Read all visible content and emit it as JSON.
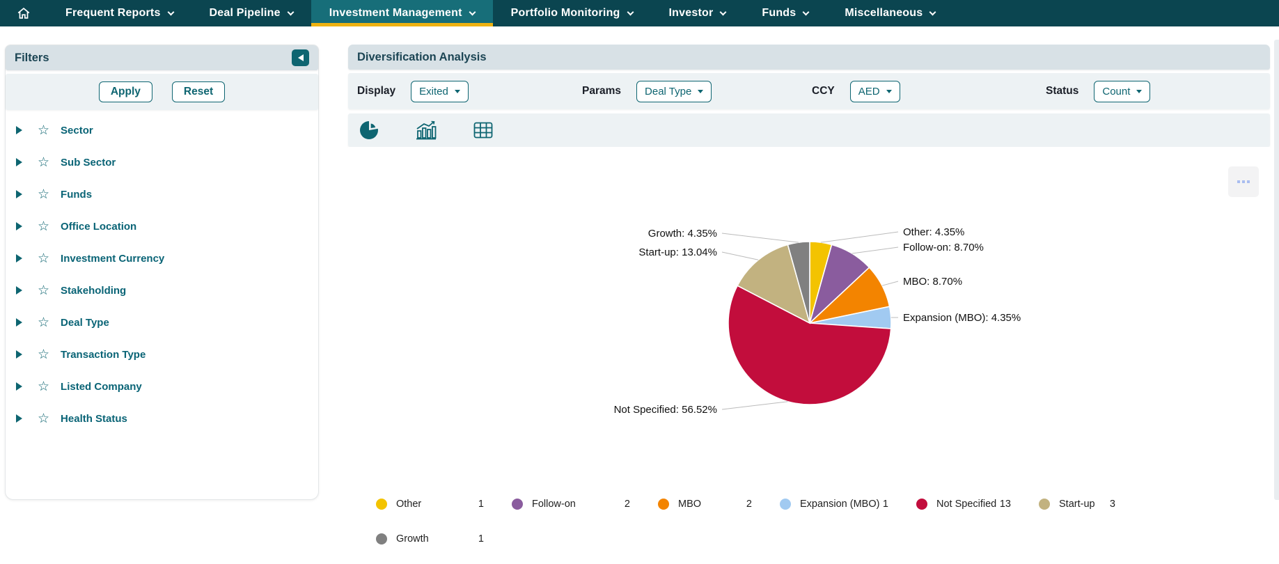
{
  "nav": {
    "items": [
      {
        "label": "Frequent Reports"
      },
      {
        "label": "Deal Pipeline"
      },
      {
        "label": "Investment Management"
      },
      {
        "label": "Portfolio Monitoring"
      },
      {
        "label": "Investor"
      },
      {
        "label": "Funds"
      },
      {
        "label": "Miscellaneous"
      }
    ],
    "active_item": "Investment Management",
    "colors": {
      "bar": "#0b4550",
      "active_bg": "#176e79",
      "active_underline": "#eeb211"
    }
  },
  "filters": {
    "title": "Filters",
    "apply_label": "Apply",
    "reset_label": "Reset",
    "items": [
      "Sector",
      "Sub Sector",
      "Funds",
      "Office Location",
      "Investment Currency",
      "Stakeholding",
      "Deal Type",
      "Transaction Type",
      "Listed Company",
      "Health Status"
    ]
  },
  "analysis": {
    "title": "Diversification Analysis",
    "controls": [
      {
        "label": "Display",
        "value": "Exited"
      },
      {
        "label": "Params",
        "value": "Deal Type"
      },
      {
        "label": "CCY",
        "value": "AED"
      },
      {
        "label": "Status",
        "value": "Count"
      }
    ],
    "chart_type_icons": [
      "pie-chart-icon",
      "bar-chart-icon",
      "table-icon"
    ],
    "accent_color": "#0e6571"
  },
  "chart_data": {
    "type": "pie",
    "title": "",
    "start_angle": "12 o'clock, clockwise",
    "legend_position": "bottom",
    "total": 23,
    "slices": [
      {
        "label": "Other",
        "value": 1,
        "pct": "4.35%",
        "color": "#F3C300"
      },
      {
        "label": "Follow-on",
        "value": 2,
        "pct": "8.70%",
        "color": "#8A5C9E"
      },
      {
        "label": "MBO",
        "value": 2,
        "pct": "8.70%",
        "color": "#F38400"
      },
      {
        "label": "Expansion (MBO)",
        "value": 1,
        "pct": "4.35%",
        "color": "#A1CAF1"
      },
      {
        "label": "Not Specified",
        "value": 13,
        "pct": "56.52%",
        "color": "#C20D3C"
      },
      {
        "label": "Start-up",
        "value": 3,
        "pct": "13.04%",
        "color": "#C2B280"
      },
      {
        "label": "Growth",
        "value": 1,
        "pct": "4.35%",
        "color": "#808080"
      }
    ],
    "callouts": [
      "Other: 4.35%",
      "Follow-on: 8.70%",
      "MBO: 8.70%",
      "Expansion (MBO): 4.35%",
      "Not Specified: 56.52%",
      "Start-up: 13.04%",
      "Growth: 4.35%"
    ]
  }
}
